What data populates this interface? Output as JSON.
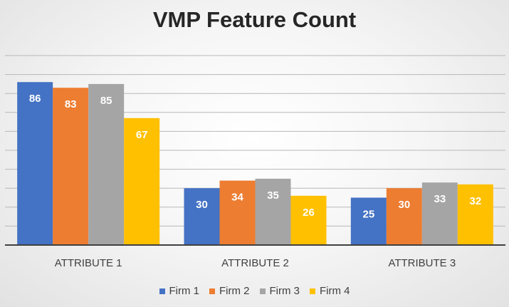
{
  "chart_data": {
    "type": "bar",
    "title": "VMP Feature Count",
    "categories": [
      "ATTRIBUTE 1",
      "ATTRIBUTE 2",
      "ATTRIBUTE 3"
    ],
    "series": [
      {
        "name": "Firm 1",
        "values": [
          86,
          30,
          25
        ],
        "color": "#4472c4"
      },
      {
        "name": "Firm 2",
        "values": [
          83,
          34,
          30
        ],
        "color": "#ed7d31"
      },
      {
        "name": "Firm 3",
        "values": [
          85,
          35,
          33
        ],
        "color": "#a5a5a5"
      },
      {
        "name": "Firm 4",
        "values": [
          67,
          26,
          32
        ],
        "color": "#ffc000"
      }
    ],
    "ylim": [
      0,
      100
    ],
    "grid": true,
    "data_labels": true,
    "legend_position": "bottom",
    "xlabel": "",
    "ylabel": ""
  }
}
